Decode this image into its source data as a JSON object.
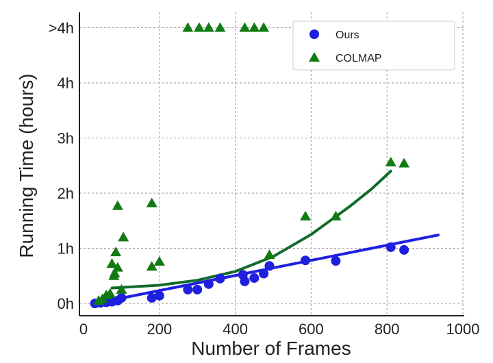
{
  "chart_data": {
    "type": "scatter",
    "title": "",
    "xlabel": "Number of Frames",
    "ylabel": "Running Time (hours)",
    "xlim": [
      0,
      1000
    ],
    "ylim": [
      -0.2,
      5.25
    ],
    "xticks": [
      0,
      200,
      400,
      600,
      800,
      1000
    ],
    "xtick_labels": [
      "0",
      "200",
      "400",
      "600",
      "800",
      "1000"
    ],
    "yticks": [
      0,
      1,
      2,
      3,
      4,
      5
    ],
    "ytick_labels": [
      "0h",
      "1h",
      "2h",
      "3h",
      "4h",
      ">4h"
    ],
    "grid": true,
    "legend_position": "top-right",
    "series": [
      {
        "name": "Ours",
        "marker": "circle",
        "color": "#1f1fe0",
        "points": [
          [
            30,
            0.0
          ],
          [
            45,
            0.01
          ],
          [
            60,
            0.02
          ],
          [
            75,
            0.03
          ],
          [
            90,
            0.05
          ],
          [
            100,
            0.1
          ],
          [
            180,
            0.1
          ],
          [
            200,
            0.14
          ],
          [
            275,
            0.25
          ],
          [
            300,
            0.25
          ],
          [
            330,
            0.35
          ],
          [
            360,
            0.45
          ],
          [
            420,
            0.52
          ],
          [
            425,
            0.4
          ],
          [
            450,
            0.46
          ],
          [
            475,
            0.54
          ],
          [
            490,
            0.68
          ],
          [
            585,
            0.78
          ],
          [
            665,
            0.77
          ],
          [
            810,
            1.02
          ],
          [
            845,
            0.97
          ]
        ],
        "fit": [
          [
            30,
            0.0
          ],
          [
            935,
            1.24
          ]
        ]
      },
      {
        "name": "COLMAP",
        "marker": "triangle",
        "color": "#117a11",
        "points": [
          [
            40,
            0.05
          ],
          [
            50,
            0.08
          ],
          [
            60,
            0.15
          ],
          [
            70,
            0.18
          ],
          [
            75,
            0.72
          ],
          [
            80,
            0.5
          ],
          [
            82,
            0.55
          ],
          [
            85,
            0.93
          ],
          [
            90,
            0.65
          ],
          [
            90,
            1.77
          ],
          [
            100,
            0.25
          ],
          [
            105,
            1.2
          ],
          [
            180,
            0.67
          ],
          [
            180,
            1.82
          ],
          [
            200,
            0.76
          ],
          [
            490,
            0.88
          ],
          [
            585,
            1.58
          ],
          [
            665,
            1.58
          ],
          [
            810,
            2.56
          ],
          [
            845,
            2.54
          ],
          [
            275,
            5
          ],
          [
            305,
            5
          ],
          [
            330,
            5
          ],
          [
            360,
            5
          ],
          [
            425,
            5
          ],
          [
            450,
            5
          ],
          [
            475,
            5
          ]
        ],
        "fit": [
          [
            75,
            0.28
          ],
          [
            200,
            0.33
          ],
          [
            300,
            0.42
          ],
          [
            400,
            0.58
          ],
          [
            500,
            0.85
          ],
          [
            600,
            1.25
          ],
          [
            700,
            1.75
          ],
          [
            760,
            2.08
          ],
          [
            810,
            2.4
          ]
        ],
        "fit_color": "#116b2a"
      }
    ]
  }
}
